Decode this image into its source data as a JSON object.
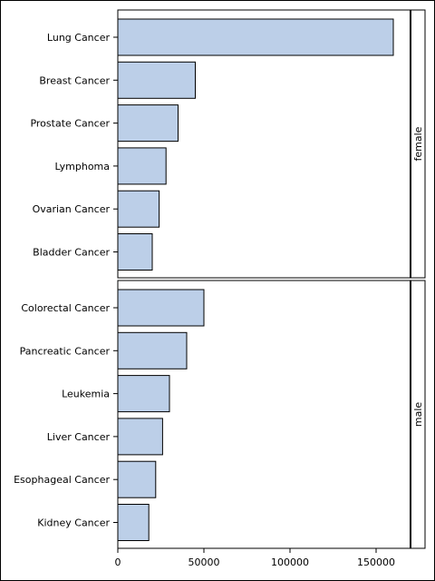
{
  "chart_data": {
    "type": "bar",
    "orientation": "horizontal",
    "bar_color": "#bccfe8",
    "bar_edge_color": "#000000",
    "xlim": [
      0,
      170000
    ],
    "xticks": [
      0,
      50000,
      100000,
      150000
    ],
    "xtick_labels": [
      "0",
      "50000",
      "100000",
      "150000"
    ],
    "panels": [
      {
        "panel_label": "female",
        "categories": [
          "Lung Cancer",
          "Breast Cancer",
          "Prostate Cancer",
          "Lymphoma",
          "Ovarian Cancer",
          "Bladder Cancer"
        ],
        "values": [
          160000,
          45000,
          35000,
          28000,
          24000,
          20000
        ]
      },
      {
        "panel_label": "male",
        "categories": [
          "Colorectal Cancer",
          "Pancreatic Cancer",
          "Leukemia",
          "Liver Cancer",
          "Esophageal Cancer",
          "Kidney Cancer"
        ],
        "values": [
          50000,
          40000,
          30000,
          26000,
          22000,
          18000
        ]
      }
    ]
  }
}
